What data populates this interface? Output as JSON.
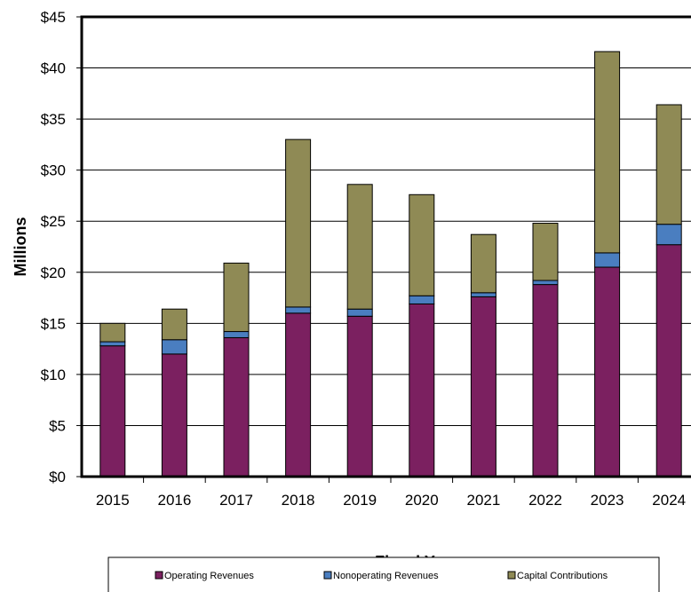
{
  "chart_data": {
    "type": "bar",
    "stacked": true,
    "title": "",
    "xlabel": "Fiscal Year",
    "ylabel": "Millions",
    "ylim": [
      0,
      45
    ],
    "ytick_step": 5,
    "ytick_prefix": "$",
    "grid": true,
    "legend_position": "bottom",
    "categories": [
      "2015",
      "2016",
      "2017",
      "2018",
      "2019",
      "2020",
      "2021",
      "2022",
      "2023",
      "2024"
    ],
    "series": [
      {
        "name": "Operating Revenues",
        "color": "#7b2060",
        "values": [
          12.8,
          12.0,
          13.6,
          16.0,
          15.7,
          16.9,
          17.6,
          18.8,
          20.5,
          22.7
        ]
      },
      {
        "name": "Nonoperating Revenues",
        "color": "#4a7ec0",
        "values": [
          0.4,
          1.4,
          0.6,
          0.6,
          0.7,
          0.8,
          0.4,
          0.4,
          1.4,
          2.0
        ]
      },
      {
        "name": "Capital Contributions",
        "color": "#8f8a55",
        "values": [
          1.8,
          3.0,
          6.7,
          16.4,
          12.2,
          9.9,
          5.7,
          5.6,
          19.7,
          11.7
        ]
      }
    ]
  }
}
